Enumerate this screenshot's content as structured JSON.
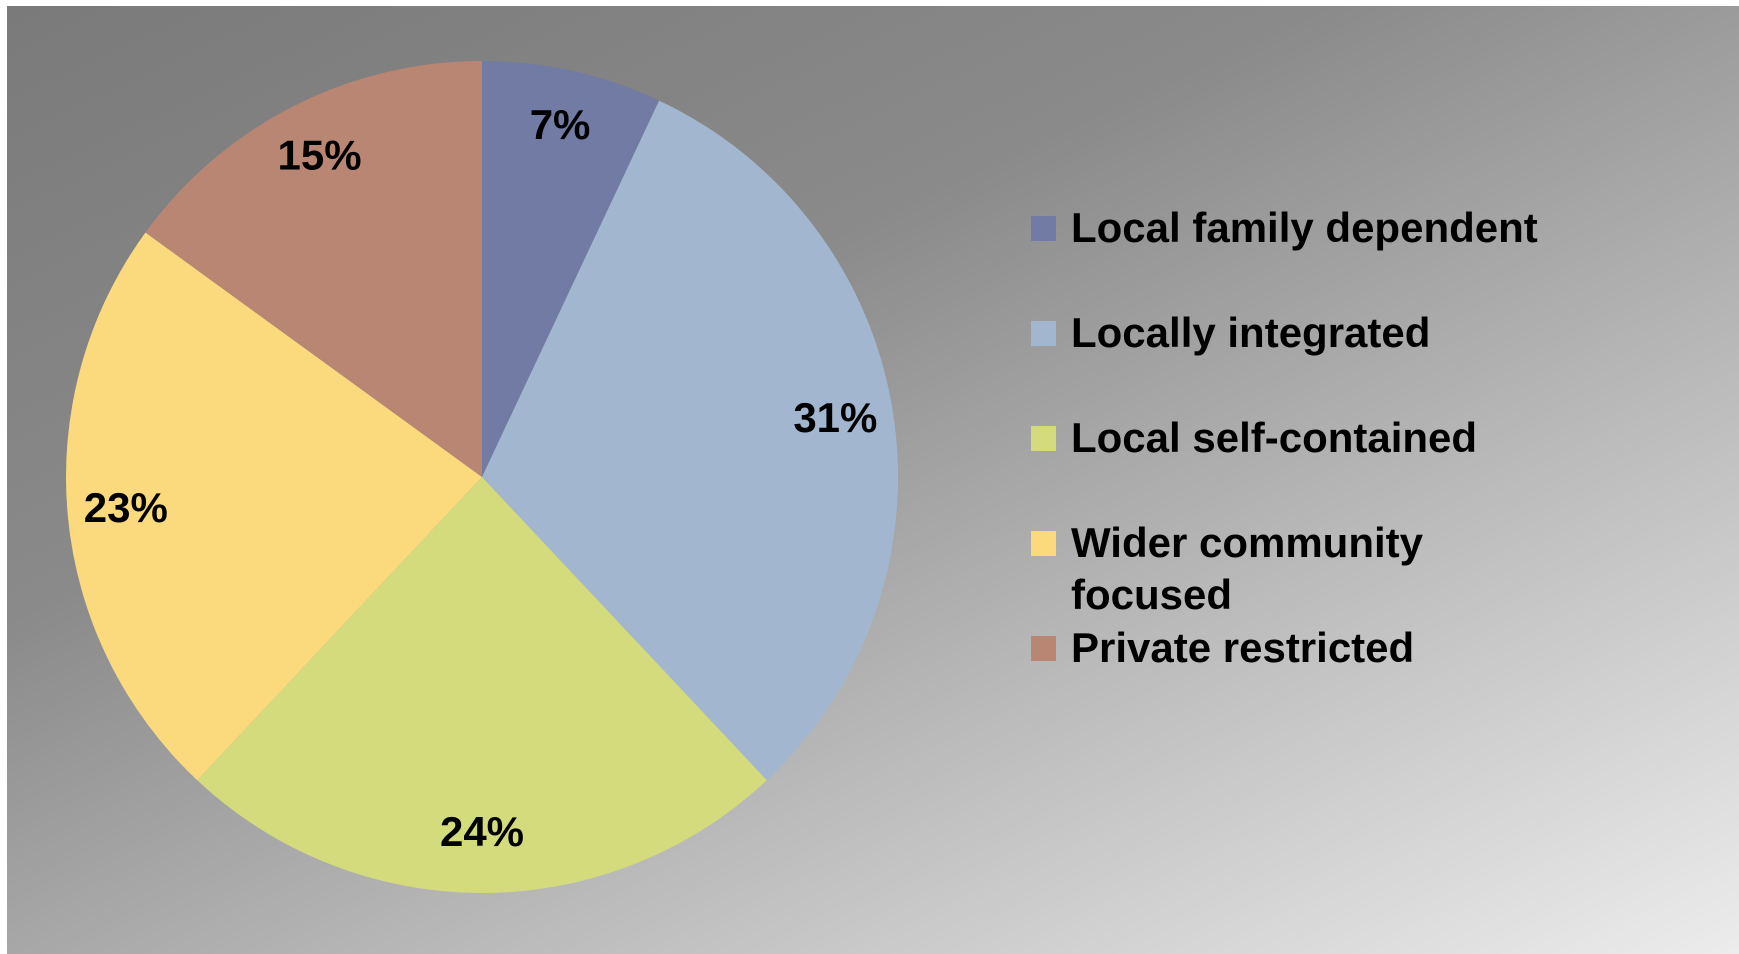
{
  "chart_data": {
    "type": "pie",
    "categories": [
      "Local family dependent",
      "Locally integrated",
      "Local self-contained",
      "Wider community focused",
      "Private restricted"
    ],
    "values": [
      7,
      31,
      24,
      23,
      15
    ],
    "value_labels": [
      "7%",
      "31%",
      "24%",
      "23%",
      "15%"
    ],
    "colors": [
      "#717ba3",
      "#a2b7cf",
      "#d4db7c",
      "#fbd97d",
      "#b88672"
    ],
    "legend": "right"
  }
}
